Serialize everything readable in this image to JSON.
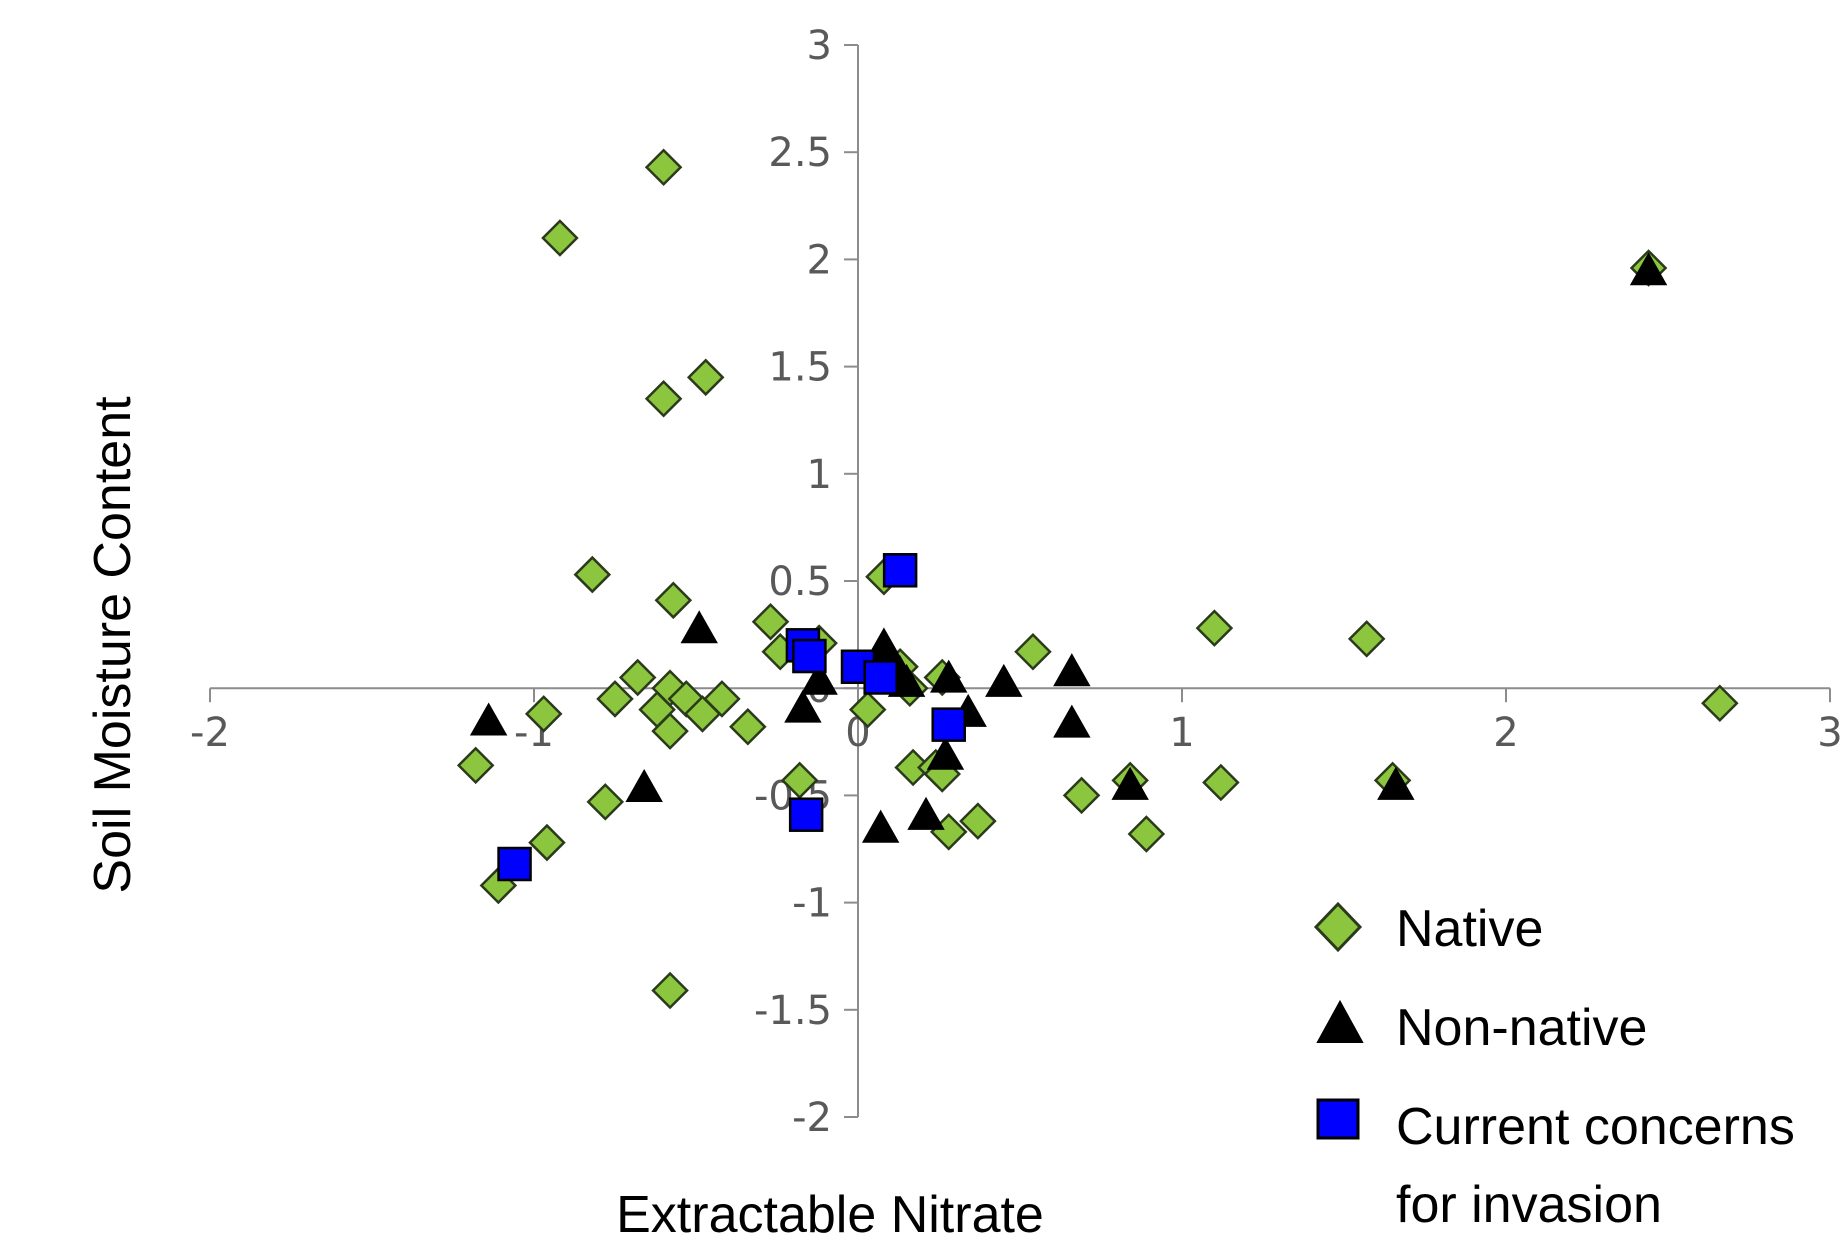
{
  "chart_data": {
    "type": "scatter",
    "xlabel": "Extractable Nitrate",
    "ylabel": "Soil Moisture Content",
    "xlim": [
      -2,
      3
    ],
    "ylim": [
      -2,
      3
    ],
    "x_ticks": [
      "-2",
      "-1",
      "0",
      "1",
      "2",
      "3"
    ],
    "y_ticks": [
      "-2",
      "-1.5",
      "-1",
      "-0.5",
      "0",
      "0.5",
      "1",
      "1.5",
      "2",
      "2.5",
      "3"
    ],
    "grid": false,
    "legend_position": "bottom-right",
    "series": [
      {
        "name": "Native",
        "marker": "diamond",
        "color": "#8CC63F",
        "stroke": "#2b3a1a",
        "points": [
          [
            -0.6,
            2.43
          ],
          [
            -0.92,
            2.1
          ],
          [
            -0.6,
            1.35
          ],
          [
            -0.47,
            1.45
          ],
          [
            -0.82,
            0.53
          ],
          [
            -0.57,
            0.41
          ],
          [
            -0.27,
            0.31
          ],
          [
            -0.24,
            0.17
          ],
          [
            -0.12,
            0.21
          ],
          [
            -0.68,
            0.05
          ],
          [
            -0.58,
            0.0
          ],
          [
            -0.75,
            -0.05
          ],
          [
            -0.62,
            -0.1
          ],
          [
            -0.53,
            -0.05
          ],
          [
            -0.48,
            -0.12
          ],
          [
            -0.42,
            -0.05
          ],
          [
            -0.34,
            -0.18
          ],
          [
            -0.58,
            -0.2
          ],
          [
            -0.97,
            -0.12
          ],
          [
            -1.18,
            -0.36
          ],
          [
            -0.78,
            -0.53
          ],
          [
            -0.96,
            -0.72
          ],
          [
            -1.11,
            -0.92
          ],
          [
            -0.58,
            -1.41
          ],
          [
            -0.18,
            -0.43
          ],
          [
            0.03,
            -0.1
          ],
          [
            0.08,
            0.52
          ],
          [
            0.13,
            0.1
          ],
          [
            0.16,
            0.0
          ],
          [
            0.26,
            0.05
          ],
          [
            0.17,
            -0.37
          ],
          [
            0.24,
            -0.37
          ],
          [
            0.26,
            -0.4
          ],
          [
            0.28,
            -0.67
          ],
          [
            0.37,
            -0.62
          ],
          [
            0.54,
            0.17
          ],
          [
            0.69,
            -0.5
          ],
          [
            0.84,
            -0.43
          ],
          [
            0.89,
            -0.68
          ],
          [
            1.1,
            0.28
          ],
          [
            1.12,
            -0.44
          ],
          [
            1.57,
            0.23
          ],
          [
            1.65,
            -0.43
          ],
          [
            2.44,
            1.96
          ],
          [
            2.66,
            -0.07
          ]
        ]
      },
      {
        "name": "Non-native",
        "marker": "triangle",
        "color": "#000000",
        "stroke": "#000000",
        "points": [
          [
            -1.14,
            -0.16
          ],
          [
            -0.66,
            -0.47
          ],
          [
            -0.49,
            0.27
          ],
          [
            -0.17,
            -0.1
          ],
          [
            -0.12,
            0.03
          ],
          [
            0.08,
            0.19
          ],
          [
            0.13,
            0.06
          ],
          [
            0.15,
            0.02
          ],
          [
            0.07,
            -0.66
          ],
          [
            0.21,
            -0.6
          ],
          [
            0.27,
            -0.32
          ],
          [
            0.28,
            0.04
          ],
          [
            0.34,
            -0.12
          ],
          [
            0.45,
            0.02
          ],
          [
            0.66,
            0.07
          ],
          [
            0.66,
            -0.17
          ],
          [
            0.84,
            -0.46
          ],
          [
            1.66,
            -0.46
          ],
          [
            2.44,
            1.94
          ]
        ]
      },
      {
        "name": "Current concerns for invasion",
        "marker": "square",
        "color": "#0000FF",
        "stroke": "#000000",
        "points": [
          [
            -1.06,
            -0.82
          ],
          [
            -0.17,
            0.2
          ],
          [
            -0.15,
            0.15
          ],
          [
            -0.16,
            -0.59
          ],
          [
            0.0,
            0.1
          ],
          [
            0.07,
            0.05
          ],
          [
            0.13,
            0.55
          ],
          [
            0.28,
            -0.17
          ]
        ]
      }
    ],
    "legend": [
      {
        "label": "Native",
        "marker": "diamond"
      },
      {
        "label": "Non-native",
        "marker": "triangle"
      },
      {
        "label": "Current concerns",
        "label_line2": "for invasion",
        "marker": "square"
      }
    ]
  }
}
